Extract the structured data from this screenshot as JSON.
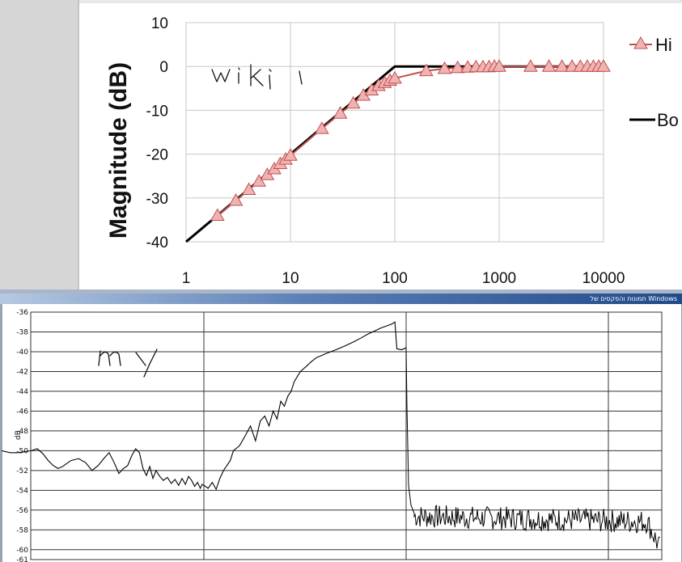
{
  "chart_data": [
    {
      "type": "line",
      "title": "",
      "xlabel": "",
      "ylabel": "Magnitude (dB)",
      "x_scale": "log",
      "xlim": [
        1,
        10000
      ],
      "ylim": [
        -40,
        10
      ],
      "x_ticks": [
        1,
        10,
        100,
        1000,
        10000
      ],
      "x_tick_labels": [
        "1",
        "10",
        "100",
        "1000",
        "10000"
      ],
      "y_ticks": [
        10,
        0,
        -10,
        -20,
        -30,
        -40
      ],
      "y_tick_labels": [
        "10",
        "0",
        "-10",
        "-20",
        "-30",
        "-40"
      ],
      "grid": true,
      "legend_position": "right",
      "legend_entries": [
        "Hi",
        "Bo"
      ],
      "annotation": "wiki",
      "series": [
        {
          "name": "Hi",
          "color": "#c0504d",
          "marker_fill": "#f0b3b3",
          "marker": "triangle",
          "x": [
            2,
            3,
            4,
            5,
            6,
            7,
            8,
            9,
            10,
            20,
            30,
            40,
            50,
            60,
            70,
            80,
            90,
            100,
            200,
            300,
            400,
            500,
            600,
            700,
            800,
            900,
            1000,
            2000,
            3000,
            4000,
            5000,
            6000,
            7000,
            8000,
            9000,
            10000
          ],
          "y": [
            -34,
            -30.6,
            -28.1,
            -26.2,
            -24.7,
            -23.4,
            -22.2,
            -21.2,
            -20.3,
            -14.2,
            -10.7,
            -8.4,
            -6.6,
            -5.4,
            -4.4,
            -3.7,
            -3.2,
            -2.7,
            -1.0,
            -0.5,
            -0.3,
            -0.2,
            -0.1,
            -0.1,
            -0.1,
            0,
            0,
            0,
            0,
            0,
            0,
            0,
            0,
            0,
            0,
            0
          ]
        },
        {
          "name": "Bo",
          "color": "#000000",
          "x": [
            1,
            100,
            10000
          ],
          "y": [
            -40,
            0,
            0
          ]
        }
      ]
    },
    {
      "type": "line",
      "title": "",
      "xlabel": "",
      "ylabel": "dB",
      "x_scale": "log",
      "xlim": [
        1,
        1000
      ],
      "ylim": [
        -61,
        -36
      ],
      "x_tick_labels": [],
      "y_ticks": [
        -36,
        -38,
        -40,
        -42,
        -44,
        -46,
        -48,
        -50,
        -52,
        -54,
        -56,
        -58,
        -60,
        -61
      ],
      "y_tick_labels": [
        "-36",
        "-38",
        "-40",
        "-42",
        "-44",
        "-46",
        "-48",
        "-50",
        "-52",
        "-54",
        "-56",
        "-58",
        "-60",
        "-61"
      ],
      "grid": true,
      "annotation": "my",
      "series": [
        {
          "color": "#000000",
          "x": [
            1.0,
            1.1,
            1.2,
            1.3,
            1.4,
            1.5,
            1.6,
            1.7,
            1.8,
            1.9,
            2.0,
            2.2,
            2.4,
            2.6,
            2.8,
            3.0,
            3.2,
            3.4,
            3.6,
            3.8,
            4.0,
            4.2,
            4.4,
            4.6,
            4.8,
            5.0,
            5.2,
            5.4,
            5.6,
            5.8,
            6.0,
            6.3,
            6.6,
            6.9,
            7.2,
            7.5,
            7.8,
            8.1,
            8.4,
            8.7,
            9.0,
            9.3,
            9.6,
            9.8,
            10.0,
            10.5,
            11.0,
            11.5,
            12.0,
            12.5,
            13.0,
            13.5,
            14.0,
            15.0,
            16.0,
            17.0,
            18.0,
            19.0,
            20.0,
            21.0,
            22.0,
            23.0,
            24.0,
            25.0,
            26.0,
            27.0,
            28.0,
            29.0,
            30.0,
            32.0,
            34.0,
            36.0,
            38.0,
            40.0,
            45.0,
            50.0,
            55.0,
            60.0,
            65.0,
            70.0,
            75.0,
            80.0,
            85.0,
            88.0,
            90.0,
            95.0,
            100.0
          ],
          "y": [
            -50.0,
            -50.2,
            -50.2,
            -50.1,
            -50.0,
            -49.8,
            -50.3,
            -51.0,
            -51.5,
            -51.8,
            -51.6,
            -51.0,
            -50.8,
            -51.2,
            -52.0,
            -51.5,
            -50.8,
            -50.2,
            -51.2,
            -52.3,
            -51.8,
            -51.5,
            -50.5,
            -49.8,
            -50.2,
            -51.8,
            -52.5,
            -51.6,
            -52.8,
            -52.0,
            -52.5,
            -53.0,
            -52.7,
            -53.3,
            -52.9,
            -53.5,
            -52.8,
            -53.4,
            -52.6,
            -53.0,
            -53.6,
            -53.2,
            -53.8,
            -53.4,
            -53.5,
            -53.8,
            -53.2,
            -53.9,
            -52.8,
            -52.0,
            -51.5,
            -51.0,
            -50.0,
            -49.5,
            -48.5,
            -47.5,
            -49.0,
            -47.0,
            -46.5,
            -47.5,
            -46.0,
            -46.8,
            -45.0,
            -45.5,
            -44.5,
            -44.0,
            -43.0,
            -42.5,
            -42.0,
            -41.5,
            -41.0,
            -40.6,
            -40.4,
            -40.2,
            -39.8,
            -39.4,
            -39.0,
            -38.6,
            -38.2,
            -37.9,
            -37.6,
            -37.4,
            -37.2,
            -37.0,
            -39.7,
            -39.8,
            -39.6
          ]
        }
      ]
    }
  ],
  "window_bar": {
    "title": "Windows תמונות והפקסים של"
  }
}
